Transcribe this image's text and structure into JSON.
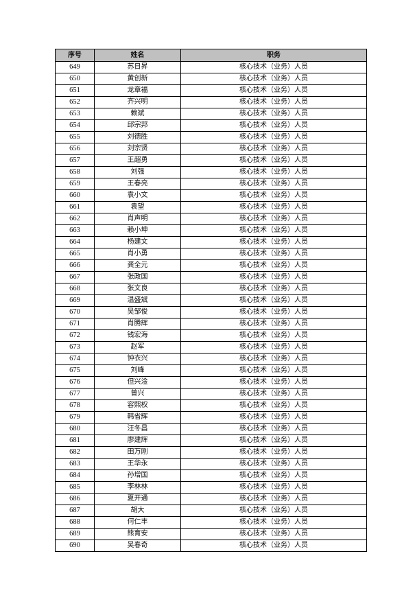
{
  "table": {
    "headers": [
      "序号",
      "姓名",
      "职务"
    ],
    "rows": [
      [
        "649",
        "苏日昇",
        "核心技术（业务）人员"
      ],
      [
        "650",
        "黄创新",
        "核心技术（业务）人员"
      ],
      [
        "651",
        "龙章福",
        "核心技术（业务）人员"
      ],
      [
        "652",
        "齐兴明",
        "核心技术（业务）人员"
      ],
      [
        "653",
        "赖斌",
        "核心技术（业务）人员"
      ],
      [
        "654",
        "邱宗邦",
        "核心技术（业务）人员"
      ],
      [
        "655",
        "刘德胜",
        "核心技术（业务）人员"
      ],
      [
        "656",
        "刘宗贤",
        "核心技术（业务）人员"
      ],
      [
        "657",
        "王超勇",
        "核心技术（业务）人员"
      ],
      [
        "658",
        "刘强",
        "核心技术（业务）人员"
      ],
      [
        "659",
        "王春亮",
        "核心技术（业务）人员"
      ],
      [
        "660",
        "袁小文",
        "核心技术（业务）人员"
      ],
      [
        "661",
        "袁望",
        "核心技术（业务）人员"
      ],
      [
        "662",
        "肖声明",
        "核心技术（业务）人员"
      ],
      [
        "663",
        "赖小坤",
        "核心技术（业务）人员"
      ],
      [
        "664",
        "杨建文",
        "核心技术（业务）人员"
      ],
      [
        "665",
        "肖小勇",
        "核心技术（业务）人员"
      ],
      [
        "666",
        "龚全元",
        "核心技术（业务）人员"
      ],
      [
        "667",
        "张政国",
        "核心技术（业务）人员"
      ],
      [
        "668",
        "张文良",
        "核心技术（业务）人员"
      ],
      [
        "669",
        "温盛斌",
        "核心技术（业务）人员"
      ],
      [
        "670",
        "吴邹俊",
        "核心技术（业务）人员"
      ],
      [
        "671",
        "肖腾辉",
        "核心技术（业务）人员"
      ],
      [
        "672",
        "钱宏海",
        "核心技术（业务）人员"
      ],
      [
        "673",
        "赵军",
        "核心技术（业务）人员"
      ],
      [
        "674",
        "钟衣兴",
        "核心技术（业务）人员"
      ],
      [
        "675",
        "刘峰",
        "核心技术（业务）人员"
      ],
      [
        "676",
        "但兴淦",
        "核心技术（业务）人员"
      ],
      [
        "677",
        "曾兴",
        "核心技术（业务）人员"
      ],
      [
        "678",
        "容熙权",
        "核心技术（业务）人员"
      ],
      [
        "679",
        "韩省辉",
        "核心技术（业务）人员"
      ],
      [
        "680",
        "汪冬昌",
        "核心技术（业务）人员"
      ],
      [
        "681",
        "廖建辉",
        "核心技术（业务）人员"
      ],
      [
        "682",
        "田万刚",
        "核心技术（业务）人员"
      ],
      [
        "683",
        "王华永",
        "核心技术（业务）人员"
      ],
      [
        "684",
        "孙增国",
        "核心技术（业务）人员"
      ],
      [
        "685",
        "李林林",
        "核心技术（业务）人员"
      ],
      [
        "686",
        "夏开通",
        "核心技术（业务）人员"
      ],
      [
        "687",
        "胡大",
        "核心技术（业务）人员"
      ],
      [
        "688",
        "何仁丰",
        "核心技术（业务）人员"
      ],
      [
        "689",
        "熊育安",
        "核心技术（业务）人员"
      ],
      [
        "690",
        "吴春奇",
        "核心技术（业务）人员"
      ]
    ]
  }
}
